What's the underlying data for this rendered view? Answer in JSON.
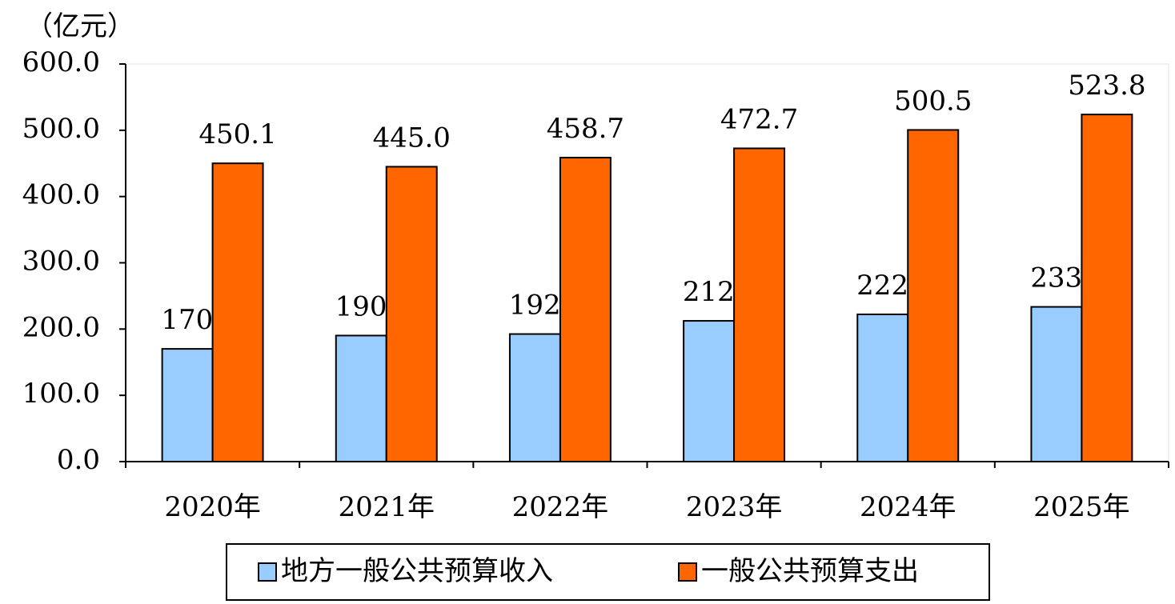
{
  "chart_data": {
    "type": "bar",
    "y_axis_label": "（亿元）",
    "categories": [
      "2020年",
      "2021年",
      "2022年",
      "2023年",
      "2024年",
      "2025年"
    ],
    "series": [
      {
        "name": "地方一般公共预算收入",
        "color": "#99ccff",
        "values": [
          170.1,
          190.2,
          192.5,
          212.4,
          222.2,
          233.5
        ],
        "value_labels": [
          "170.1",
          "190.2",
          "192.5",
          "212.4",
          "222.2",
          "233.5"
        ]
      },
      {
        "name": "一般公共预算支出",
        "color": "#ff6600",
        "values": [
          450.1,
          445.0,
          458.7,
          472.7,
          500.5,
          523.8
        ],
        "value_labels": [
          "450.1",
          "445.0",
          "458.7",
          "472.7",
          "500.5",
          "523.8"
        ]
      }
    ],
    "ylim": [
      0,
      600
    ],
    "yticks": [
      {
        "value": 0,
        "label": "0.0"
      },
      {
        "value": 100,
        "label": "100.0"
      },
      {
        "value": 200,
        "label": "200.0"
      },
      {
        "value": 300,
        "label": "300.0"
      },
      {
        "value": 400,
        "label": "400.0"
      },
      {
        "value": 500,
        "label": "500.0"
      },
      {
        "value": 600,
        "label": "600.0"
      }
    ],
    "legend": "bottom"
  }
}
